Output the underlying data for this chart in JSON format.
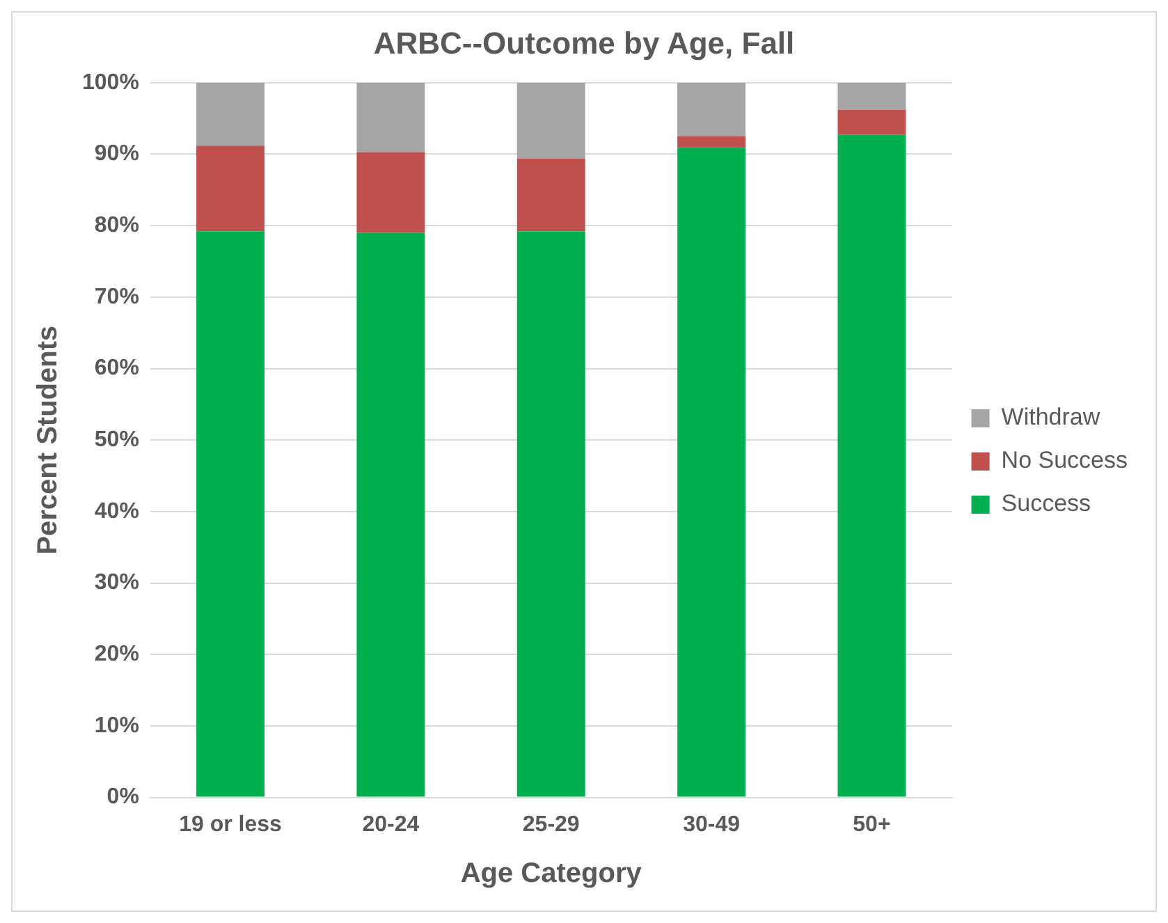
{
  "chart_data": {
    "type": "bar",
    "title": "ARBC--Outcome by Age, Fall",
    "xlabel": "Age Category",
    "ylabel": "Percent Students",
    "categories": [
      "19 or less",
      "20-24",
      "25-29",
      "30-49",
      "50+"
    ],
    "series": [
      {
        "name": "Success",
        "color": "#00b050",
        "values": [
          79.2,
          79.0,
          79.2,
          90.9,
          92.7
        ]
      },
      {
        "name": "No Success",
        "color": "#c0504d",
        "values": [
          12.0,
          11.3,
          10.2,
          1.6,
          3.5
        ]
      },
      {
        "name": "Withdraw",
        "color": "#a5a5a5",
        "values": [
          8.8,
          9.7,
          10.6,
          7.5,
          3.8
        ]
      }
    ],
    "stacked": true,
    "ylim": [
      0,
      100
    ],
    "yticks": [
      {
        "value": 0,
        "label": "0%"
      },
      {
        "value": 10,
        "label": "10%"
      },
      {
        "value": 20,
        "label": "20%"
      },
      {
        "value": 30,
        "label": "30%"
      },
      {
        "value": 40,
        "label": "40%"
      },
      {
        "value": 50,
        "label": "50%"
      },
      {
        "value": 60,
        "label": "60%"
      },
      {
        "value": 70,
        "label": "70%"
      },
      {
        "value": 80,
        "label": "80%"
      },
      {
        "value": 90,
        "label": "90%"
      },
      {
        "value": 100,
        "label": "100%"
      }
    ],
    "grid": "y",
    "legend": "right"
  }
}
